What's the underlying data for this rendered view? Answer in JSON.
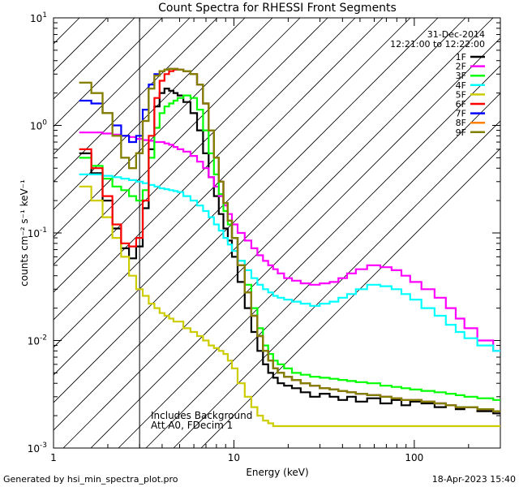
{
  "chart_data": {
    "type": "line",
    "title": "Count Spectra for RHESSI Front Segments",
    "xlabel": "Energy (keV)",
    "ylabel": "counts cm⁻² s⁻¹ keV⁻¹",
    "xscale": "log",
    "yscale": "log",
    "xlim": [
      1,
      300
    ],
    "ylim": [
      0.001,
      10
    ],
    "x_ticks": [
      {
        "value": 1,
        "label": "1"
      },
      {
        "value": 10,
        "label": "10"
      },
      {
        "value": 100,
        "label": "100"
      }
    ],
    "y_ticks": [
      {
        "value": 10,
        "base": "10",
        "exp": "1"
      },
      {
        "value": 1,
        "base": "10",
        "exp": "0"
      },
      {
        "value": 0.1,
        "base": "10",
        "exp": "-1"
      },
      {
        "value": 0.01,
        "base": "10",
        "exp": "-2"
      },
      {
        "value": 0.001,
        "base": "10",
        "exp": "-3"
      }
    ],
    "date": "31-Dec-2014",
    "time_range": "12:21:00 to 12:22:00",
    "annotation_lines": [
      "Includes Background",
      "Att A0, FDecim 1"
    ],
    "hatched_region_xmax": 3,
    "series": [
      {
        "name": "1F",
        "color": "#000000",
        "x": [
          1.5,
          1.75,
          2.0,
          2.25,
          2.5,
          2.75,
          3.0,
          3.25,
          3.5,
          3.75,
          4.0,
          4.25,
          4.5,
          4.75,
          5.0,
          5.5,
          6.0,
          6.5,
          7.0,
          7.5,
          8.0,
          8.5,
          9.0,
          9.5,
          10.0,
          11,
          12,
          13,
          14,
          15,
          16,
          17,
          18,
          20,
          22,
          25,
          28,
          32,
          36,
          40,
          45,
          50,
          60,
          70,
          80,
          90,
          100,
          120,
          140,
          160,
          180,
          200,
          250,
          300
        ],
        "values": [
          0.55,
          0.36,
          0.2,
          0.11,
          0.072,
          0.058,
          0.075,
          0.17,
          0.6,
          1.5,
          2.0,
          2.2,
          2.1,
          2.0,
          1.9,
          1.65,
          1.3,
          0.9,
          0.55,
          0.33,
          0.22,
          0.15,
          0.11,
          0.085,
          0.06,
          0.035,
          0.02,
          0.012,
          0.008,
          0.006,
          0.005,
          0.0045,
          0.004,
          0.0038,
          0.0036,
          0.0033,
          0.003,
          0.0032,
          0.003,
          0.0028,
          0.003,
          0.0027,
          0.0029,
          0.0026,
          0.0028,
          0.0025,
          0.0027,
          0.0026,
          0.0024,
          0.0025,
          0.0023,
          0.0024,
          0.0022,
          0.0021
        ]
      },
      {
        "name": "2F",
        "color": "#ff00ff",
        "x": [
          1.5,
          1.75,
          2.0,
          2.25,
          2.5,
          2.75,
          3.0,
          3.25,
          3.5,
          3.75,
          4.0,
          4.25,
          4.5,
          4.75,
          5.0,
          5.5,
          6.0,
          6.5,
          7.0,
          7.5,
          8.0,
          8.5,
          9.0,
          9.5,
          10.0,
          11,
          12,
          13,
          14,
          15,
          16,
          17,
          18,
          20,
          22,
          25,
          28,
          32,
          36,
          40,
          45,
          50,
          60,
          70,
          80,
          90,
          100,
          120,
          140,
          160,
          180,
          200,
          250,
          300
        ],
        "values": [
          0.86,
          0.86,
          0.84,
          0.82,
          0.8,
          0.78,
          0.75,
          0.73,
          0.72,
          0.7,
          0.7,
          0.68,
          0.66,
          0.63,
          0.6,
          0.57,
          0.52,
          0.46,
          0.4,
          0.33,
          0.27,
          0.22,
          0.18,
          0.15,
          0.12,
          0.1,
          0.085,
          0.072,
          0.062,
          0.055,
          0.05,
          0.046,
          0.042,
          0.038,
          0.036,
          0.034,
          0.033,
          0.034,
          0.035,
          0.038,
          0.042,
          0.046,
          0.05,
          0.048,
          0.045,
          0.04,
          0.035,
          0.03,
          0.025,
          0.02,
          0.016,
          0.013,
          0.01,
          0.008
        ]
      },
      {
        "name": "3F",
        "color": "#00ff00",
        "x": [
          1.5,
          1.75,
          2.0,
          2.25,
          2.5,
          2.75,
          3.0,
          3.25,
          3.5,
          3.75,
          4.0,
          4.25,
          4.5,
          4.75,
          5.0,
          5.5,
          6.0,
          6.5,
          7.0,
          7.5,
          8.0,
          8.5,
          9.0,
          9.5,
          10.0,
          11,
          12,
          13,
          14,
          15,
          16,
          17,
          18,
          20,
          22,
          25,
          28,
          32,
          36,
          40,
          45,
          50,
          60,
          70,
          80,
          90,
          100,
          120,
          140,
          160,
          180,
          200,
          250,
          300
        ],
        "values": [
          0.5,
          0.42,
          0.32,
          0.27,
          0.25,
          0.22,
          0.2,
          0.25,
          0.5,
          0.95,
          1.3,
          1.5,
          1.6,
          1.7,
          1.8,
          1.9,
          1.8,
          1.4,
          0.9,
          0.55,
          0.35,
          0.23,
          0.16,
          0.12,
          0.09,
          0.055,
          0.033,
          0.02,
          0.013,
          0.009,
          0.0075,
          0.0065,
          0.006,
          0.0055,
          0.005,
          0.0048,
          0.0046,
          0.0045,
          0.0044,
          0.0043,
          0.0042,
          0.0041,
          0.004,
          0.0038,
          0.0037,
          0.0036,
          0.0035,
          0.0034,
          0.0033,
          0.0032,
          0.0031,
          0.003,
          0.0029,
          0.0028
        ]
      },
      {
        "name": "4F",
        "color": "#00ffff",
        "x": [
          1.5,
          1.75,
          2.0,
          2.25,
          2.5,
          2.75,
          3.0,
          3.25,
          3.5,
          3.75,
          4.0,
          4.25,
          4.5,
          4.75,
          5.0,
          5.5,
          6.0,
          6.5,
          7.0,
          7.5,
          8.0,
          8.5,
          9.0,
          9.5,
          10.0,
          11,
          12,
          13,
          14,
          15,
          16,
          17,
          18,
          20,
          22,
          25,
          28,
          32,
          36,
          40,
          45,
          50,
          60,
          70,
          80,
          90,
          100,
          120,
          140,
          160,
          180,
          200,
          250,
          300
        ],
        "values": [
          0.35,
          0.35,
          0.34,
          0.33,
          0.32,
          0.31,
          0.3,
          0.29,
          0.28,
          0.27,
          0.26,
          0.255,
          0.25,
          0.245,
          0.24,
          0.22,
          0.2,
          0.18,
          0.16,
          0.14,
          0.12,
          0.105,
          0.09,
          0.078,
          0.068,
          0.055,
          0.045,
          0.038,
          0.033,
          0.03,
          0.028,
          0.026,
          0.025,
          0.024,
          0.023,
          0.022,
          0.021,
          0.022,
          0.023,
          0.025,
          0.027,
          0.03,
          0.033,
          0.032,
          0.03,
          0.027,
          0.024,
          0.02,
          0.017,
          0.014,
          0.012,
          0.0105,
          0.009,
          0.008
        ]
      },
      {
        "name": "5F",
        "color": "#cccc00",
        "x": [
          1.5,
          1.75,
          2.0,
          2.25,
          2.5,
          2.75,
          3.0,
          3.25,
          3.5,
          3.75,
          4.0,
          4.25,
          4.5,
          4.75,
          5.0,
          5.5,
          6.0,
          6.5,
          7.0,
          7.5,
          8.0,
          8.5,
          9.0,
          9.5,
          10.0,
          11,
          12,
          13,
          14,
          15,
          16,
          17,
          18,
          20,
          22,
          25,
          28,
          32,
          36,
          40,
          45,
          50,
          60,
          70,
          80,
          90,
          100,
          120,
          140,
          160,
          180,
          200,
          250,
          300
        ],
        "values": [
          0.27,
          0.2,
          0.14,
          0.09,
          0.06,
          0.04,
          0.03,
          0.026,
          0.022,
          0.02,
          0.018,
          0.017,
          0.016,
          0.015,
          0.015,
          0.013,
          0.012,
          0.011,
          0.01,
          0.009,
          0.0085,
          0.008,
          0.0075,
          0.0065,
          0.0055,
          0.004,
          0.003,
          0.0024,
          0.002,
          0.0018,
          0.0017,
          0.0016,
          0.0016,
          0.0016,
          0.0016,
          0.0016,
          0.0016,
          0.0016,
          0.0016,
          0.0016,
          0.0016,
          0.0016,
          0.0016,
          0.0016,
          0.0016,
          0.0016,
          0.0016,
          0.0016,
          0.0016,
          0.0016,
          0.0016,
          0.0016,
          0.0016,
          0.0016
        ]
      },
      {
        "name": "6F",
        "color": "#ff0000",
        "x": [
          1.5,
          1.75,
          2.0,
          2.25,
          2.5,
          2.75,
          3.0,
          3.25,
          3.5,
          3.75,
          4.0,
          4.25,
          4.5,
          4.75,
          5.0,
          5.5,
          6.0,
          6.5,
          7.0,
          7.5,
          8.0,
          8.5,
          9.0,
          9.5,
          10.0,
          11,
          12,
          13,
          14,
          15,
          16,
          17,
          18,
          20,
          22,
          25,
          28,
          32,
          36,
          40,
          45,
          50,
          60,
          70,
          80,
          90,
          100,
          120,
          140,
          160,
          180,
          200,
          250,
          300
        ],
        "values": [
          0.6,
          0.4,
          0.22,
          0.12,
          0.08,
          0.075,
          0.09,
          0.2,
          0.8,
          1.8,
          2.6,
          3.0,
          3.2,
          3.3,
          3.3,
          3.2,
          3.0,
          2.4,
          1.6,
          0.9,
          0.5,
          0.3,
          0.19,
          0.13,
          0.09,
          0.05,
          0.028,
          0.017,
          0.011,
          0.008,
          0.0065,
          0.0055,
          0.005,
          0.0046,
          0.0043,
          0.004,
          0.0038,
          0.0036,
          0.0035,
          0.0034,
          0.0033,
          0.0032,
          0.0031,
          0.003,
          0.0029,
          0.0028,
          0.0028,
          0.0027,
          0.0026,
          0.0025,
          0.0024,
          0.0024,
          0.0023,
          0.0022
        ]
      },
      {
        "name": "7F",
        "color": "#0000ff",
        "x": [
          1.5,
          1.75,
          2.0,
          2.25,
          2.5,
          2.75,
          3.0,
          3.25,
          3.5,
          3.75,
          4.0,
          4.25,
          4.5,
          4.75,
          5.0,
          5.5,
          6.0,
          6.5,
          7.0,
          7.5,
          8.0,
          8.5,
          9.0,
          9.5,
          10.0,
          11,
          12,
          13,
          14,
          15,
          16,
          17,
          18,
          20,
          22,
          25,
          28,
          32,
          36,
          40,
          45,
          50,
          60,
          70,
          80,
          90,
          100,
          120,
          140,
          160,
          180,
          200,
          250,
          300
        ],
        "values": [
          1.7,
          1.6,
          1.3,
          1.0,
          0.8,
          0.7,
          0.8,
          1.4,
          2.4,
          3.0,
          3.2,
          3.3,
          3.35,
          3.35,
          3.3,
          3.2,
          3.0,
          2.4,
          1.6,
          0.9,
          0.5,
          0.3,
          0.19,
          0.13,
          0.09,
          0.05,
          0.028,
          0.017,
          0.011,
          0.008,
          0.0065,
          0.0055,
          0.005,
          0.0046,
          0.0043,
          0.004,
          0.0038,
          0.0036,
          0.0035,
          0.0034,
          0.0033,
          0.0032,
          0.0031,
          0.003,
          0.0029,
          0.0028,
          0.0028,
          0.0027,
          0.0026,
          0.0025,
          0.0024,
          0.0024,
          0.0023,
          0.0022
        ]
      },
      {
        "name": "8F",
        "color": "#ff8000",
        "x": [
          1.5,
          1.75,
          2.0,
          2.25,
          2.5,
          2.75,
          3.0,
          3.25,
          3.5,
          3.75,
          4.0,
          4.25,
          4.5,
          4.75,
          5.0,
          5.5,
          6.0,
          6.5,
          7.0,
          7.5,
          8.0,
          8.5,
          9.0,
          9.5,
          10.0,
          11,
          12,
          13,
          14,
          15,
          16,
          17,
          18,
          20,
          22,
          25,
          28,
          32,
          36,
          40,
          45,
          50,
          60,
          70,
          80,
          90,
          100,
          120,
          140,
          160,
          180,
          200,
          250,
          300
        ],
        "values": [
          2.5,
          2.0,
          1.3,
          0.8,
          0.5,
          0.4,
          0.55,
          1.1,
          2.2,
          2.9,
          3.2,
          3.3,
          3.35,
          3.35,
          3.3,
          3.2,
          3.0,
          2.4,
          1.6,
          0.9,
          0.5,
          0.3,
          0.19,
          0.13,
          0.09,
          0.05,
          0.028,
          0.017,
          0.011,
          0.008,
          0.0065,
          0.0055,
          0.005,
          0.0046,
          0.0043,
          0.004,
          0.0038,
          0.0036,
          0.0035,
          0.0034,
          0.0033,
          0.0032,
          0.0031,
          0.003,
          0.0029,
          0.0028,
          0.0028,
          0.0027,
          0.0026,
          0.0025,
          0.0024,
          0.0024,
          0.0023,
          0.0022
        ]
      },
      {
        "name": "9F",
        "color": "#808000",
        "x": [
          1.5,
          1.75,
          2.0,
          2.25,
          2.5,
          2.75,
          3.0,
          3.25,
          3.5,
          3.75,
          4.0,
          4.25,
          4.5,
          4.75,
          5.0,
          5.5,
          6.0,
          6.5,
          7.0,
          7.5,
          8.0,
          8.5,
          9.0,
          9.5,
          10.0,
          11,
          12,
          13,
          14,
          15,
          16,
          17,
          18,
          20,
          22,
          25,
          28,
          32,
          36,
          40,
          45,
          50,
          60,
          70,
          80,
          90,
          100,
          120,
          140,
          160,
          180,
          200,
          250,
          300
        ],
        "values": [
          2.5,
          2.0,
          1.3,
          0.8,
          0.5,
          0.4,
          0.55,
          1.1,
          2.2,
          2.9,
          3.2,
          3.3,
          3.35,
          3.35,
          3.3,
          3.2,
          3.0,
          2.4,
          1.6,
          0.9,
          0.5,
          0.3,
          0.19,
          0.13,
          0.09,
          0.05,
          0.028,
          0.017,
          0.011,
          0.008,
          0.0065,
          0.0055,
          0.005,
          0.0046,
          0.0043,
          0.004,
          0.0038,
          0.0036,
          0.0035,
          0.0034,
          0.0033,
          0.0032,
          0.0031,
          0.003,
          0.0029,
          0.0028,
          0.0028,
          0.0027,
          0.0026,
          0.0025,
          0.0024,
          0.0024,
          0.0023,
          0.0022
        ]
      }
    ]
  },
  "footer": {
    "left": "Generated by hsi_min_spectra_plot.pro",
    "right": "18-Apr-2023 15:40"
  }
}
